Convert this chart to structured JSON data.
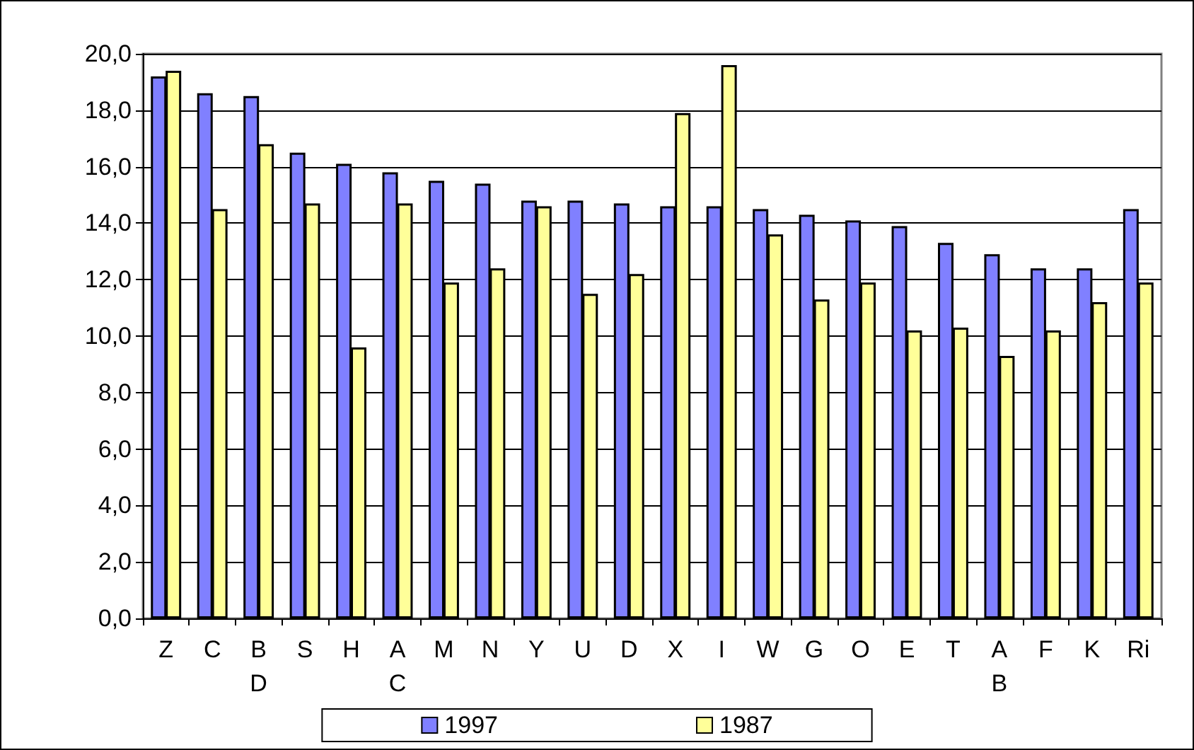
{
  "chart_data": {
    "type": "bar",
    "categories": [
      "Z",
      "C",
      "B\nD",
      "S",
      "H",
      "A\nC",
      "M",
      "N",
      "Y",
      "U",
      "D",
      "X",
      "I",
      "W",
      "G",
      "O",
      "E",
      "T",
      "A\nB",
      "F",
      "K",
      "Ri"
    ],
    "series": [
      {
        "name": "1997",
        "color": "#8080ff",
        "values": [
          19.2,
          18.6,
          18.5,
          16.5,
          16.1,
          15.8,
          15.5,
          15.4,
          14.8,
          14.8,
          14.7,
          14.6,
          14.6,
          14.5,
          14.3,
          14.1,
          13.9,
          13.3,
          12.9,
          12.4,
          12.4,
          14.5
        ]
      },
      {
        "name": "1987",
        "color": "#ffff99",
        "values": [
          19.4,
          14.5,
          16.8,
          14.7,
          9.6,
          14.7,
          11.9,
          12.4,
          14.6,
          11.5,
          12.2,
          17.9,
          19.6,
          13.6,
          11.3,
          11.9,
          10.2,
          10.3,
          9.3,
          10.2,
          11.2,
          11.9
        ]
      }
    ],
    "ylim": [
      0,
      20
    ],
    "yticks": [
      {
        "value": 0,
        "label": "0,0"
      },
      {
        "value": 2,
        "label": "2,0"
      },
      {
        "value": 4,
        "label": "4,0"
      },
      {
        "value": 6,
        "label": "6,0"
      },
      {
        "value": 8,
        "label": "8,0"
      },
      {
        "value": 10,
        "label": "10,0"
      },
      {
        "value": 12,
        "label": "12,0"
      },
      {
        "value": 14,
        "label": "14,0"
      },
      {
        "value": 16,
        "label": "16,0"
      },
      {
        "value": 18,
        "label": "18,0"
      },
      {
        "value": 20,
        "label": "20,0"
      }
    ],
    "grid": "y",
    "legend": "bottom"
  }
}
